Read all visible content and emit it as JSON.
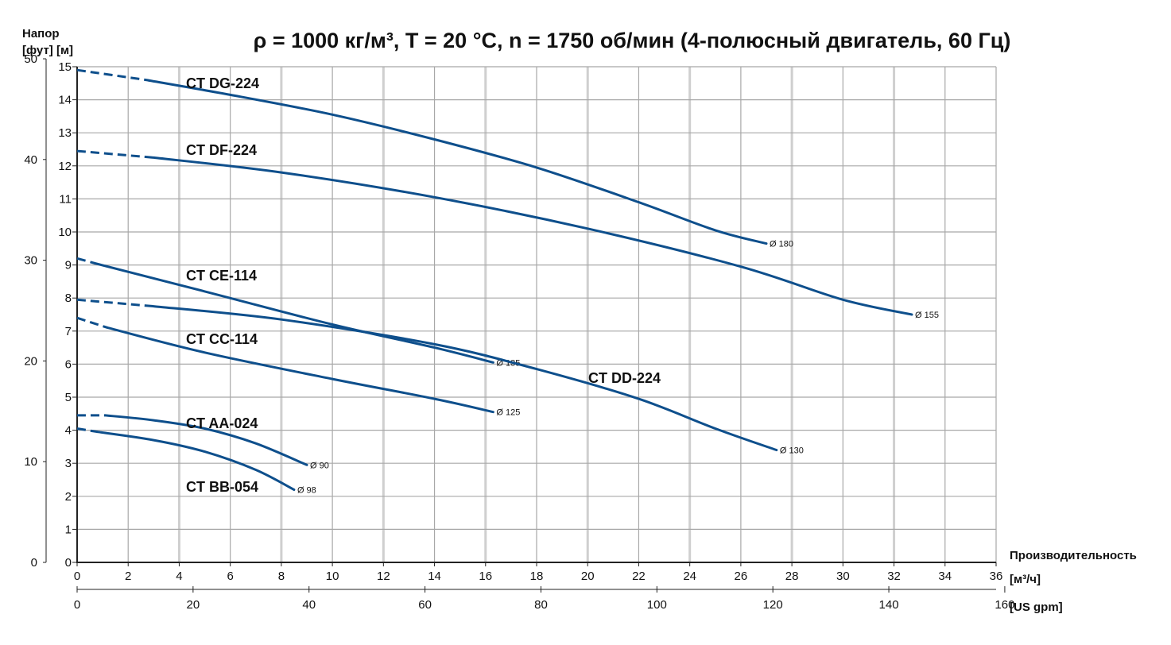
{
  "colors": {
    "curve": "#0e4f8c",
    "grid": "#a8a8a8",
    "grid_major": "#cfcfcf",
    "axis": "#222222"
  },
  "chart_data": {
    "type": "line",
    "title": "ρ = 1000 кг/м³, T = 20 °C, n = 1750 об/мин (4-полюсный двигатель, 60 Гц)",
    "ylabel_line1": "Напор",
    "ylabel_line2": "[фут] [м]",
    "xlabel": "Производительность",
    "xunit_m3h": "[м³/ч]",
    "xunit_gpm": "[US gpm]",
    "xlim": [
      0,
      36
    ],
    "ylim": [
      0,
      15
    ],
    "x_ticks_m3h": [
      0,
      2,
      4,
      6,
      8,
      10,
      12,
      14,
      16,
      18,
      20,
      22,
      24,
      26,
      28,
      30,
      32,
      34,
      36
    ],
    "x_ticks_gpm": [
      0,
      20,
      40,
      60,
      80,
      100,
      120,
      140,
      160
    ],
    "y_ticks_m": [
      0,
      1,
      2,
      3,
      4,
      5,
      6,
      7,
      8,
      9,
      10,
      11,
      12,
      13,
      14,
      15
    ],
    "y_ticks_ft": [
      0,
      10,
      20,
      30,
      40,
      50
    ],
    "series": [
      {
        "name": "CT DG-224",
        "diameter_label": "Ø 180",
        "dashed": [
          [
            0,
            14.9
          ],
          [
            2.7,
            14.6
          ]
        ],
        "solid": [
          [
            2.7,
            14.6
          ],
          [
            6,
            14.15
          ],
          [
            10,
            13.55
          ],
          [
            14,
            12.8
          ],
          [
            18,
            11.95
          ],
          [
            22,
            10.9
          ],
          [
            25,
            10.05
          ],
          [
            27,
            9.65
          ]
        ]
      },
      {
        "name": "CT DF-224",
        "diameter_label": "Ø 155",
        "dashed": [
          [
            0,
            12.45
          ],
          [
            3,
            12.25
          ]
        ],
        "solid": [
          [
            3,
            12.25
          ],
          [
            8,
            11.8
          ],
          [
            14,
            11.05
          ],
          [
            20,
            10.1
          ],
          [
            26,
            8.95
          ],
          [
            30,
            7.95
          ],
          [
            32.7,
            7.5
          ]
        ]
      },
      {
        "name": "CT CE-114",
        "diameter_label": "Ø 135",
        "dashed": [
          [
            0,
            9.2
          ],
          [
            0.7,
            9.05
          ]
        ],
        "solid": [
          [
            0.7,
            9.05
          ],
          [
            5,
            8.2
          ],
          [
            10,
            7.2
          ],
          [
            14,
            6.5
          ],
          [
            16.3,
            6.05
          ]
        ]
      },
      {
        "name": "CT DD-224",
        "diameter_label": "Ø 130",
        "dashed": [
          [
            0,
            7.95
          ],
          [
            3,
            7.75
          ]
        ],
        "solid": [
          [
            3,
            7.75
          ],
          [
            8,
            7.35
          ],
          [
            14,
            6.6
          ],
          [
            18,
            5.85
          ],
          [
            22,
            4.95
          ],
          [
            25,
            4.05
          ],
          [
            27.4,
            3.4
          ]
        ]
      },
      {
        "name": "CT CC-114",
        "diameter_label": "Ø 125",
        "dashed": [
          [
            0,
            7.4
          ],
          [
            1.2,
            7.1
          ]
        ],
        "solid": [
          [
            1.2,
            7.1
          ],
          [
            5,
            6.35
          ],
          [
            10,
            5.55
          ],
          [
            14,
            4.95
          ],
          [
            16.3,
            4.55
          ]
        ]
      },
      {
        "name": "CT AA-024",
        "diameter_label": "Ø 90",
        "dashed": [
          [
            0,
            4.45
          ],
          [
            1.1,
            4.45
          ]
        ],
        "solid": [
          [
            1.1,
            4.45
          ],
          [
            3,
            4.3
          ],
          [
            5,
            4.05
          ],
          [
            7,
            3.6
          ],
          [
            9,
            2.95
          ]
        ]
      },
      {
        "name": "CT BB-054",
        "diameter_label": "Ø 98",
        "dashed": [
          [
            0,
            4.05
          ],
          [
            0.8,
            3.95
          ]
        ],
        "solid": [
          [
            0.8,
            3.95
          ],
          [
            3,
            3.7
          ],
          [
            5,
            3.35
          ],
          [
            7,
            2.8
          ],
          [
            8.5,
            2.2
          ]
        ]
      }
    ]
  }
}
